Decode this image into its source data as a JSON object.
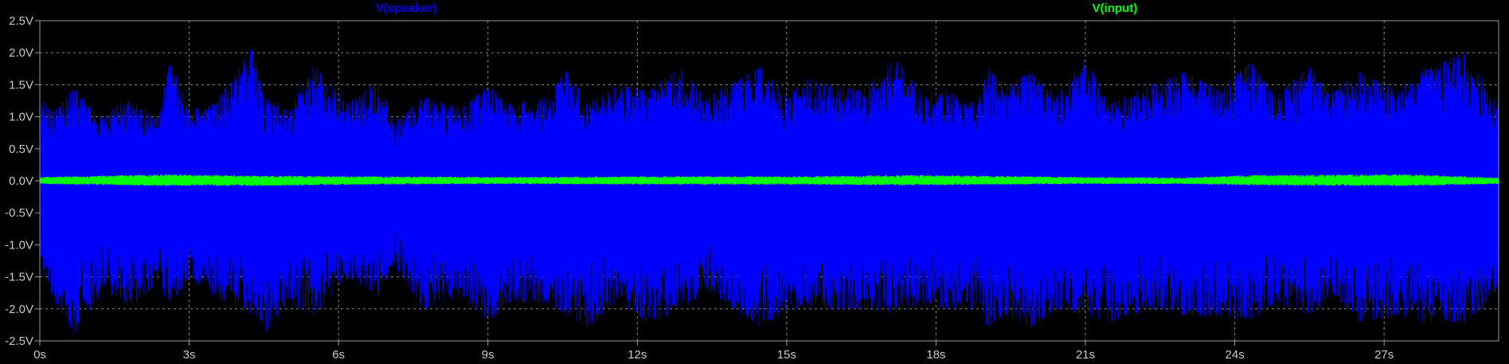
{
  "chart_data": {
    "type": "line",
    "x_unit": "s",
    "y_unit": "V",
    "xlim": [
      0,
      29.3
    ],
    "ylim": [
      -2.5,
      2.5
    ],
    "x_ticks": [
      0,
      3,
      6,
      9,
      12,
      15,
      18,
      21,
      24,
      27
    ],
    "x_tick_labels": [
      "0s",
      "3s",
      "6s",
      "9s",
      "12s",
      "15s",
      "18s",
      "21s",
      "24s",
      "27s"
    ],
    "y_ticks": [
      2.5,
      2.0,
      1.5,
      1.0,
      0.5,
      0.0,
      -0.5,
      -1.0,
      -1.5,
      -2.0,
      -2.5
    ],
    "y_tick_labels": [
      "2.5V",
      "2.0V",
      "1.5V",
      "1.0V",
      "0.5V",
      "0.0V",
      "-0.5V",
      "-1.0V",
      "-1.5V",
      "-2.0V",
      "-2.5V"
    ],
    "grid": true,
    "legend_placement": "top",
    "background_color": "#000000",
    "series": [
      {
        "name": "V(speaker)",
        "color": "#0000ff",
        "x": [
          0.0,
          0.3,
          0.7,
          1.2,
          1.6,
          1.8,
          2.4,
          2.6,
          3.0,
          3.5,
          4.3,
          4.5,
          5.0,
          5.5,
          6.2,
          6.8,
          7.1,
          7.7,
          8.5,
          9.0,
          9.4,
          10.2,
          10.6,
          11.0,
          11.6,
          12.2,
          12.8,
          13.4,
          14.5,
          15.0,
          15.4,
          16.5,
          17.2,
          17.8,
          18.2,
          18.8,
          19.0,
          19.4,
          19.9,
          20.4,
          21.0,
          21.5,
          22.3,
          23.0,
          23.7,
          24.3,
          24.8,
          25.5,
          26.0,
          26.5,
          27.3,
          27.7,
          28.6,
          29.3
        ],
        "y_max": [
          1.3,
          1.1,
          1.45,
          1.0,
          1.2,
          1.25,
          1.0,
          1.9,
          1.1,
          1.2,
          2.1,
          1.3,
          1.1,
          1.8,
          1.2,
          1.6,
          0.9,
          1.3,
          1.15,
          1.5,
          1.2,
          1.3,
          1.75,
          1.2,
          1.5,
          1.4,
          1.8,
          1.3,
          1.8,
          1.3,
          1.6,
          1.4,
          1.95,
          1.3,
          1.4,
          1.2,
          1.8,
          1.5,
          1.7,
          1.3,
          1.9,
          1.2,
          1.5,
          1.7,
          1.4,
          1.9,
          1.3,
          1.8,
          1.4,
          1.7,
          1.4,
          1.7,
          2.0,
          1.2
        ],
        "y_min": [
          -1.3,
          -1.9,
          -2.4,
          -1.8,
          -1.8,
          -2.0,
          -1.6,
          -2.0,
          -1.5,
          -1.8,
          -2.1,
          -2.4,
          -1.9,
          -2.1,
          -1.5,
          -1.8,
          -1.3,
          -2.0,
          -1.8,
          -2.2,
          -1.9,
          -1.9,
          -2.1,
          -2.3,
          -1.9,
          -2.2,
          -2.1,
          -1.7,
          -2.3,
          -2.0,
          -2.0,
          -2.0,
          -2.1,
          -1.9,
          -2.0,
          -2.0,
          -2.3,
          -2.1,
          -2.3,
          -2.0,
          -2.1,
          -2.2,
          -2.0,
          -2.1,
          -2.1,
          -2.2,
          -1.9,
          -2.1,
          -1.8,
          -2.2,
          -2.1,
          -2.2,
          -2.2,
          -1.8
        ]
      },
      {
        "name": "V(input)",
        "color": "#00ff00",
        "x": [
          0.0,
          2.6,
          4.3,
          6.5,
          9.3,
          12.8,
          15.2,
          17.5,
          21.0,
          23.0,
          24.3,
          27.5,
          29.3
        ],
        "y_max": [
          0.06,
          0.1,
          0.08,
          0.07,
          0.06,
          0.07,
          0.07,
          0.09,
          0.06,
          0.05,
          0.09,
          0.1,
          0.05
        ],
        "y_min": [
          -0.05,
          -0.08,
          -0.08,
          -0.06,
          -0.05,
          -0.06,
          -0.06,
          -0.07,
          -0.05,
          -0.05,
          -0.07,
          -0.08,
          -0.05
        ]
      }
    ]
  }
}
